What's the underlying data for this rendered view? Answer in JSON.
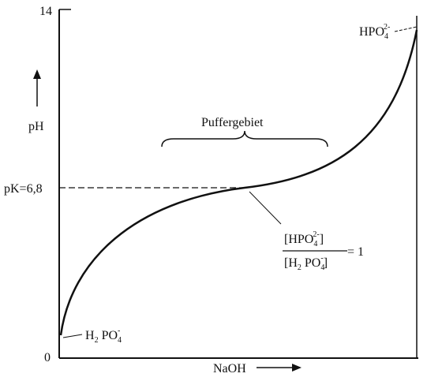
{
  "axis": {
    "y_top_label": "14",
    "y_mid_label": "pK=6,8",
    "y_bottom_label": "0",
    "y_title": "pH",
    "x_title": "NaOH"
  },
  "annotations": {
    "buffer_region": "Puffergebiet",
    "top_species": {
      "base": "HPO",
      "sub": "4",
      "sup": "2-"
    },
    "bottom_species": {
      "base1": "H",
      "sub1": "2",
      "base2": " PO",
      "sub2": "4",
      "sup": "-"
    },
    "ratio": {
      "numerator": {
        "open": "[HPO",
        "sub": "4",
        "sup": "2-",
        "close": "]"
      },
      "denominator": {
        "open": "[H",
        "sub1": "2",
        "mid": " PO",
        "sub2": "4",
        "sup": "-",
        "close": "]"
      },
      "equals": "= 1"
    }
  }
}
